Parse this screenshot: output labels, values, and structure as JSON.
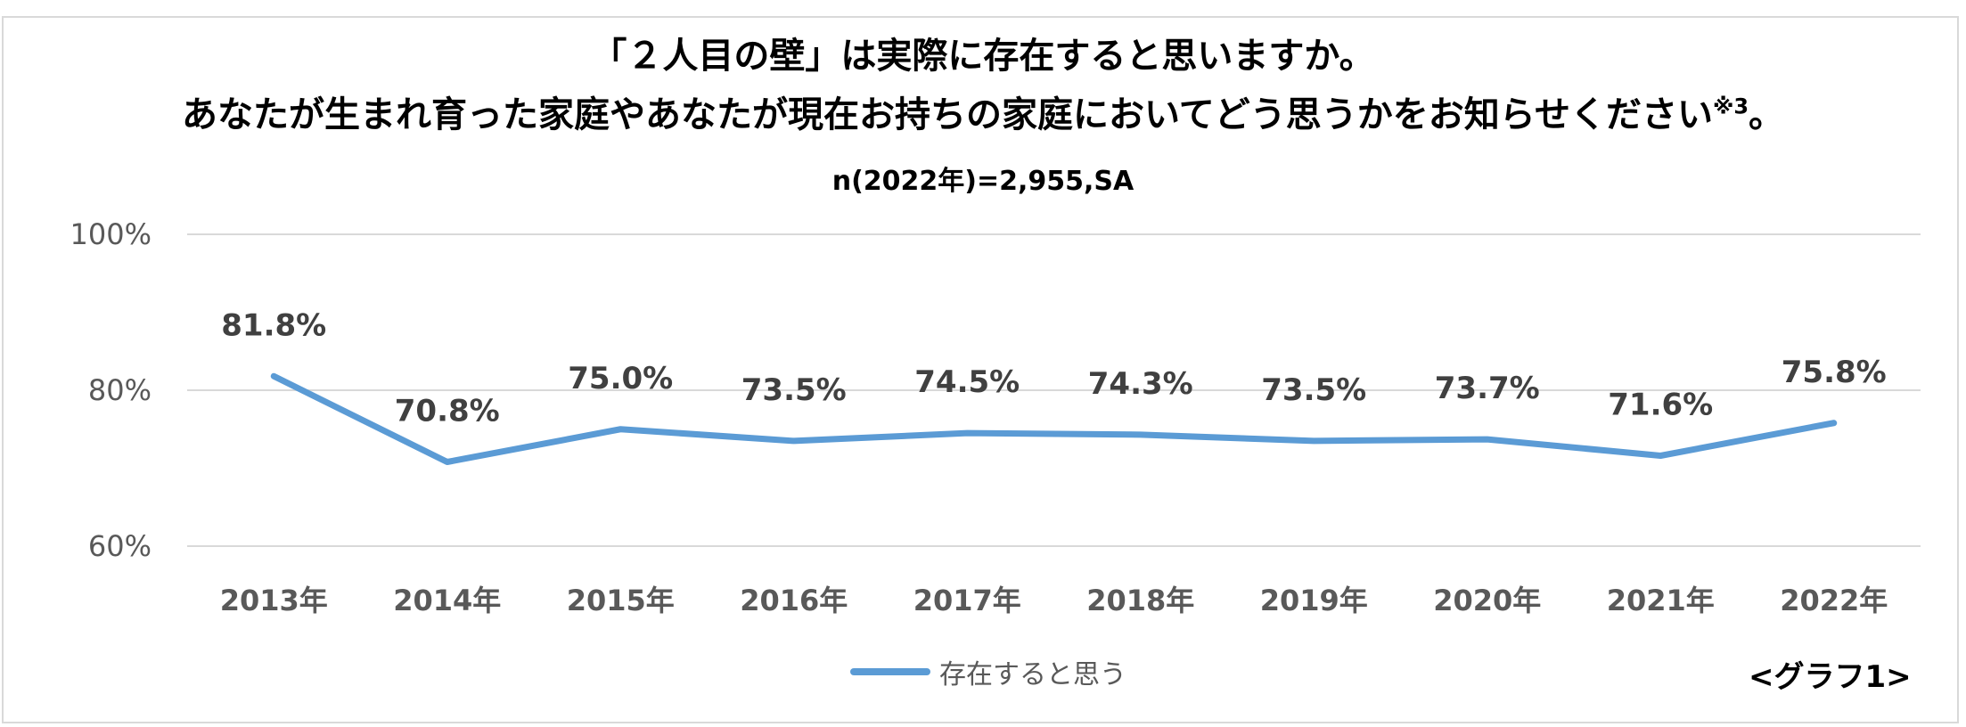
{
  "title_line1": "「２人目の壁」は実際に存在すると思いますか。",
  "title_line2": "あなたが生まれ育った家庭やあなたが現在お持ちの家庭においてどう思うかをお知らせください",
  "title_line2_note": "※3",
  "title_line2_end": "。",
  "subtitle": "n(2022年)=2,955,SA",
  "graph_label": "<グラフ1>",
  "colors": {
    "series": "#5b9bd5",
    "grid": "#d9d9d9",
    "tick_text": "#595959",
    "label_text": "#404040"
  },
  "chart_data": {
    "type": "line",
    "categories": [
      "2013年",
      "2014年",
      "2015年",
      "2016年",
      "2017年",
      "2018年",
      "2019年",
      "2020年",
      "2021年",
      "2022年"
    ],
    "series": [
      {
        "name": "存在すると思う",
        "values": [
          81.8,
          70.8,
          75.0,
          73.5,
          74.5,
          74.3,
          73.5,
          73.7,
          71.6,
          75.8
        ]
      }
    ],
    "data_labels": [
      "81.8%",
      "70.8%",
      "75.0%",
      "73.5%",
      "74.5%",
      "74.3%",
      "73.5%",
      "73.7%",
      "71.6%",
      "75.8%"
    ],
    "yticks": [
      60,
      80,
      100
    ],
    "ytick_labels": [
      "60%",
      "80%",
      "100%"
    ],
    "ylim": [
      60,
      100
    ],
    "grid": true,
    "legend": "bottom-center"
  }
}
